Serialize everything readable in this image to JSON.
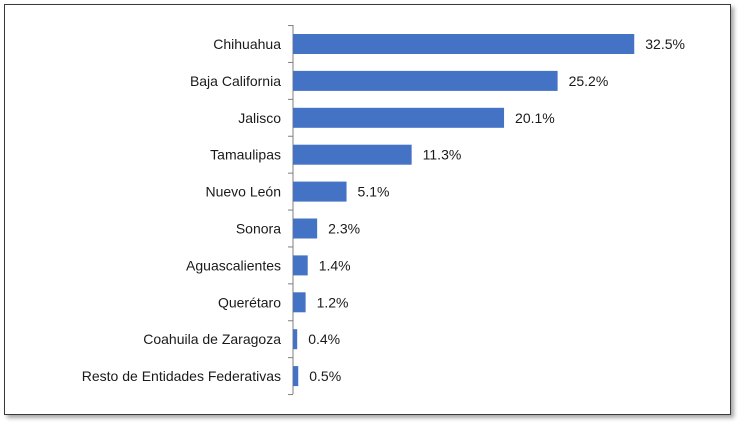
{
  "chart_data": {
    "type": "bar",
    "orientation": "horizontal",
    "categories": [
      "Chihuahua",
      "Baja California",
      "Jalisco",
      "Tamaulipas",
      "Nuevo León",
      "Sonora",
      "Aguascalientes",
      "Querétaro",
      "Coahuila de Zaragoza",
      "Resto de Entidades Federativas"
    ],
    "values": [
      32.5,
      25.2,
      20.1,
      11.3,
      5.1,
      2.3,
      1.4,
      1.2,
      0.4,
      0.5
    ],
    "value_labels": [
      "32.5%",
      "25.2%",
      "20.1%",
      "11.3%",
      "5.1%",
      "2.3%",
      "1.4%",
      "1.2%",
      "0.4%",
      "0.5%"
    ],
    "bar_color": "#4472C4",
    "axis_color": "#7f7f7f",
    "grid": false,
    "legend": "none"
  }
}
